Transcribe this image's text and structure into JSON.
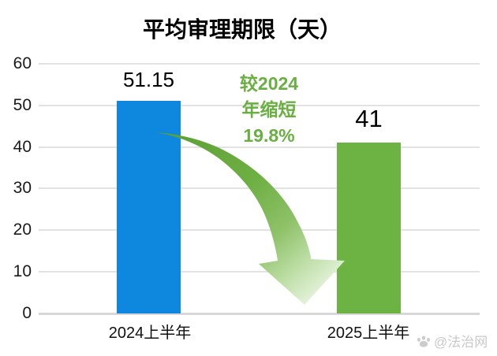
{
  "chart_data": {
    "type": "bar",
    "title": "平均审理期限（天）",
    "categories": [
      "2024上半年",
      "2025上半年"
    ],
    "values": [
      51.15,
      41
    ],
    "value_labels": [
      "51.15",
      "41"
    ],
    "xlabel": "",
    "ylabel": "",
    "ylim": [
      0,
      60
    ],
    "yticks": [
      "60",
      "50",
      "40",
      "30",
      "20",
      "10",
      "0"
    ],
    "grid": true,
    "legend": "none",
    "bar_colors": [
      "#0e87de",
      "#6db344"
    ],
    "grid_color": "#e2e2e2",
    "axis_color": "#d8d8d8",
    "annotation": {
      "text": "较2024年缩短19.8%",
      "lines": [
        "较2024",
        "年缩短",
        "19.8%"
      ],
      "color": "#69af41"
    },
    "arrow": {
      "description": "curved green arrow from 2024 bar down to 2025 bar",
      "gradient": [
        "#5a9e33",
        "#6fb044",
        "#8ec168",
        "#bcdda4",
        "#e4f2da"
      ]
    }
  },
  "watermark": {
    "icon": "paw-icon",
    "text": "@法治网",
    "color": "#c9c9c9"
  }
}
